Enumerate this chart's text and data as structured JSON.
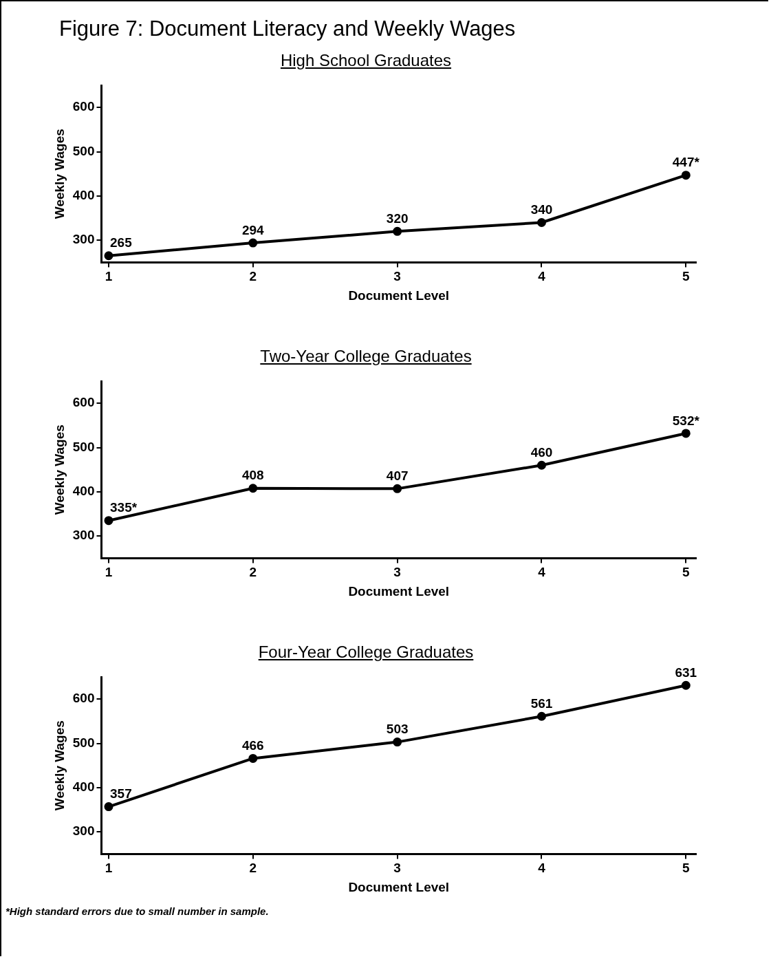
{
  "chart_data": [
    {
      "type": "line",
      "title": "Figure 7: Document Literacy and Weekly Wages",
      "subtitle": "High School Graduates",
      "xlabel": "Document Level",
      "ylabel": "Weekly Wages",
      "x": [
        1,
        2,
        3,
        4,
        5
      ],
      "series": [
        {
          "color": "#000000",
          "values": [
            265,
            294,
            320,
            340,
            447
          ],
          "value_labels": [
            "265",
            "294",
            "320",
            "340",
            "447*"
          ]
        }
      ],
      "xlim": [
        0.95,
        5.07
      ],
      "xticks": [
        1,
        2,
        3,
        4,
        5
      ],
      "ylim": [
        250,
        650
      ],
      "yticks": [
        300,
        400,
        500,
        600
      ],
      "grid": false,
      "legend": false,
      "marker": "circle",
      "line_style": "solid"
    },
    {
      "type": "line",
      "title": "Two-Year College Graduates",
      "xlabel": "Document Level",
      "ylabel": "Weekly Wages",
      "x": [
        1,
        2,
        3,
        4,
        5
      ],
      "series": [
        {
          "color": "#000000",
          "values": [
            335,
            408,
            407,
            460,
            532
          ],
          "value_labels": [
            "335*",
            "408",
            "407",
            "460",
            "532*"
          ]
        }
      ],
      "xlim": [
        0.95,
        5.07
      ],
      "xticks": [
        1,
        2,
        3,
        4,
        5
      ],
      "ylim": [
        250,
        650
      ],
      "yticks": [
        300,
        400,
        500,
        600
      ],
      "grid": false,
      "legend": false,
      "marker": "circle",
      "line_style": "solid"
    },
    {
      "type": "line",
      "title": "Four-Year College Graduates",
      "xlabel": "Document Level",
      "ylabel": "Weekly Wages",
      "x": [
        1,
        2,
        3,
        4,
        5
      ],
      "series": [
        {
          "color": "#000000",
          "values": [
            357,
            466,
            503,
            561,
            631
          ],
          "value_labels": [
            "357",
            "466",
            "503",
            "561",
            "631"
          ]
        }
      ],
      "xlim": [
        0.95,
        5.07
      ],
      "xticks": [
        1,
        2,
        3,
        4,
        5
      ],
      "ylim": [
        250,
        650
      ],
      "yticks": [
        300,
        400,
        500,
        600
      ],
      "grid": false,
      "legend": false,
      "marker": "circle",
      "line_style": "solid",
      "annotations": [
        "*High standard errors due to small number in sample."
      ]
    }
  ]
}
